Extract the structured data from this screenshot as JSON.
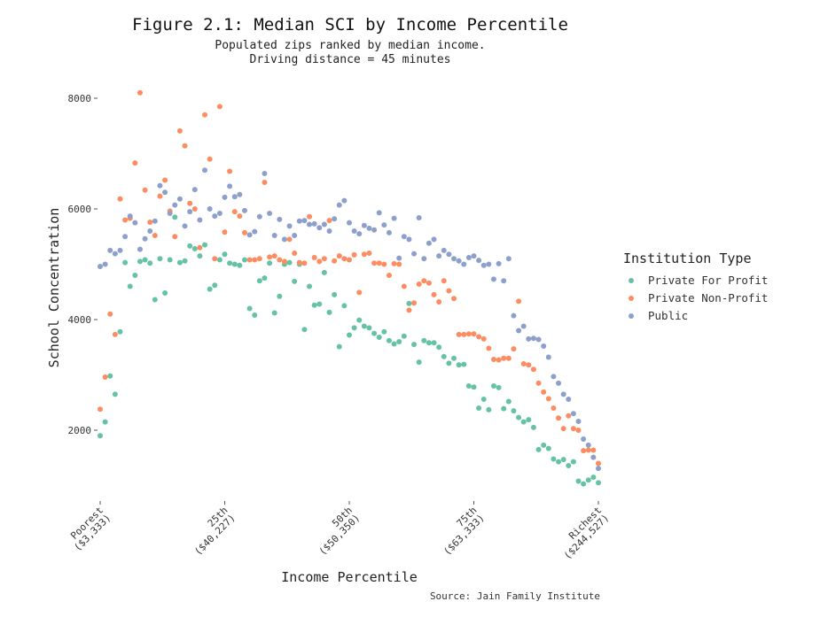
{
  "chart_data": {
    "type": "scatter",
    "title": "Figure 2.1: Median SCI by Income Percentile",
    "subtitle_lines": [
      "Populated zips ranked by median income.",
      "Driving distance = 45 minutes"
    ],
    "xlabel": "Income Percentile",
    "ylabel": "School Concentration",
    "caption": "Source: Jain Family Institute",
    "xlim": [
      0,
      100
    ],
    "ylim": [
      750,
      8400
    ],
    "y_ticks": [
      2000,
      4000,
      6000,
      8000
    ],
    "x_ticks": [
      {
        "value": 0,
        "line1": "Poorest",
        "line2": "($3,333)"
      },
      {
        "value": 25,
        "line1": "25th",
        "line2": "($40,227)"
      },
      {
        "value": 50,
        "line1": "50th",
        "line2": "($50,350)"
      },
      {
        "value": 75,
        "line1": "75th",
        "line2": "($63,333)"
      },
      {
        "value": 100,
        "line1": "Richest",
        "line2": "($244,527)"
      }
    ],
    "grid": false,
    "legend": {
      "title": "Institution Type",
      "position": "right"
    },
    "series": [
      {
        "name": "Private For Profit",
        "color": "#66c2a5",
        "x": [
          0,
          1,
          2,
          3,
          4,
          5,
          6,
          7,
          8,
          9,
          10,
          11,
          12,
          13,
          14,
          15,
          16,
          17,
          18,
          19,
          20,
          21,
          22,
          23,
          24,
          25,
          26,
          27,
          28,
          29,
          30,
          31,
          32,
          33,
          34,
          35,
          36,
          37,
          38,
          39,
          40,
          41,
          42,
          43,
          44,
          45,
          46,
          47,
          48,
          49,
          50,
          51,
          52,
          53,
          54,
          55,
          56,
          57,
          58,
          59,
          60,
          61,
          62,
          63,
          64,
          65,
          66,
          67,
          68,
          69,
          70,
          71,
          72,
          73,
          74,
          75,
          76,
          77,
          78,
          79,
          80,
          81,
          82,
          83,
          84,
          85,
          86,
          87,
          88,
          89,
          90,
          91,
          92,
          93,
          94,
          95,
          96,
          97,
          98,
          99,
          100
        ],
        "y": [
          1900,
          2150,
          2980,
          2650,
          3780,
          5030,
          4600,
          4800,
          5050,
          5080,
          5020,
          4360,
          5100,
          4480,
          5080,
          5850,
          5030,
          5060,
          5330,
          5280,
          5150,
          5350,
          4550,
          4620,
          5080,
          5180,
          5020,
          5000,
          4980,
          5080,
          4200,
          4080,
          4700,
          4750,
          5020,
          4120,
          4420,
          5000,
          5030,
          4690,
          5000,
          3820,
          4600,
          4260,
          4280,
          4850,
          4130,
          4450,
          3510,
          4250,
          3720,
          3850,
          3990,
          3880,
          3850,
          3750,
          3680,
          3780,
          3620,
          3560,
          3600,
          3700,
          4290,
          3550,
          3230,
          3620,
          3580,
          3580,
          3500,
          3330,
          3210,
          3300,
          3180,
          3190,
          2800,
          2780,
          2400,
          2560,
          2370,
          2800,
          2770,
          2390,
          2520,
          2350,
          2230,
          2150,
          2190,
          2050,
          1650,
          1730,
          1670,
          1480,
          1430,
          1470,
          1360,
          1430,
          1080,
          1030,
          1100,
          1150,
          1050
        ]
      },
      {
        "name": "Private Non-Profit",
        "color": "#fc8d62",
        "x": [
          0,
          1,
          2,
          3,
          4,
          5,
          6,
          7,
          8,
          9,
          10,
          11,
          12,
          13,
          14,
          15,
          16,
          17,
          18,
          19,
          20,
          21,
          22,
          23,
          24,
          25,
          26,
          27,
          28,
          29,
          30,
          31,
          32,
          33,
          34,
          35,
          36,
          37,
          38,
          39,
          40,
          41,
          42,
          43,
          44,
          45,
          46,
          47,
          48,
          49,
          50,
          51,
          52,
          53,
          54,
          55,
          56,
          57,
          58,
          59,
          60,
          61,
          62,
          63,
          64,
          65,
          66,
          67,
          68,
          69,
          70,
          71,
          72,
          73,
          74,
          75,
          76,
          77,
          78,
          79,
          80,
          81,
          82,
          83,
          84,
          85,
          86,
          87,
          88,
          89,
          90,
          91,
          92,
          93,
          94,
          95,
          96,
          97,
          98,
          99,
          100
        ],
        "y": [
          2380,
          2960,
          4100,
          3730,
          6180,
          5800,
          5830,
          6830,
          8100,
          6340,
          5760,
          5520,
          6230,
          6520,
          5960,
          5500,
          7410,
          7140,
          6100,
          6000,
          5300,
          7700,
          6900,
          5100,
          7850,
          5580,
          6680,
          5950,
          5870,
          5570,
          5080,
          5080,
          5100,
          6480,
          5130,
          5150,
          5080,
          5050,
          5450,
          5200,
          5030,
          5020,
          5860,
          5120,
          5050,
          5100,
          5790,
          5060,
          5150,
          5100,
          5080,
          5170,
          4490,
          5180,
          5200,
          5020,
          5020,
          5000,
          4800,
          5010,
          5000,
          4600,
          4170,
          4300,
          4640,
          4700,
          4660,
          4450,
          4320,
          4700,
          4520,
          4380,
          3730,
          3730,
          3740,
          3740,
          3690,
          3650,
          3480,
          3280,
          3270,
          3300,
          3300,
          3470,
          4330,
          3200,
          3180,
          3100,
          2850,
          2690,
          2570,
          2400,
          2220,
          2030,
          2260,
          2030,
          2000,
          1630,
          1640,
          1640,
          1400
        ]
      },
      {
        "name": "Public",
        "color": "#8da0cb",
        "x": [
          0,
          1,
          2,
          3,
          4,
          5,
          6,
          7,
          8,
          9,
          10,
          11,
          12,
          13,
          14,
          15,
          16,
          17,
          18,
          19,
          20,
          21,
          22,
          23,
          24,
          25,
          26,
          27,
          28,
          29,
          30,
          31,
          32,
          33,
          34,
          35,
          36,
          37,
          38,
          39,
          40,
          41,
          42,
          43,
          44,
          45,
          46,
          47,
          48,
          49,
          50,
          51,
          52,
          53,
          54,
          55,
          56,
          57,
          58,
          59,
          60,
          61,
          62,
          63,
          64,
          65,
          66,
          67,
          68,
          69,
          70,
          71,
          72,
          73,
          74,
          75,
          76,
          77,
          78,
          79,
          80,
          81,
          82,
          83,
          84,
          85,
          86,
          87,
          88,
          89,
          90,
          91,
          92,
          93,
          94,
          95,
          96,
          97,
          98,
          99,
          100
        ],
        "y": [
          4960,
          5000,
          5250,
          5190,
          5250,
          5500,
          5870,
          5750,
          5270,
          5460,
          5600,
          5780,
          6420,
          6300,
          5920,
          6070,
          6180,
          5690,
          5950,
          6350,
          5800,
          6700,
          6000,
          5870,
          5920,
          6210,
          6410,
          6220,
          6260,
          5970,
          5530,
          5590,
          5860,
          6640,
          5920,
          5520,
          5810,
          5450,
          5690,
          5520,
          5780,
          5790,
          5720,
          5730,
          5660,
          5720,
          5600,
          5820,
          6070,
          6150,
          5750,
          5600,
          5550,
          5700,
          5650,
          5620,
          5930,
          5710,
          5570,
          5830,
          5110,
          5500,
          5450,
          5190,
          5840,
          5100,
          5380,
          5450,
          5150,
          5250,
          5180,
          5100,
          5060,
          5000,
          5120,
          5150,
          5070,
          4980,
          5000,
          4730,
          5010,
          4700,
          5100,
          4070,
          3800,
          3880,
          3650,
          3660,
          3640,
          3520,
          3320,
          2970,
          2850,
          2650,
          2560,
          2300,
          2160,
          1840,
          1730,
          1510,
          1310
        ]
      }
    ]
  }
}
